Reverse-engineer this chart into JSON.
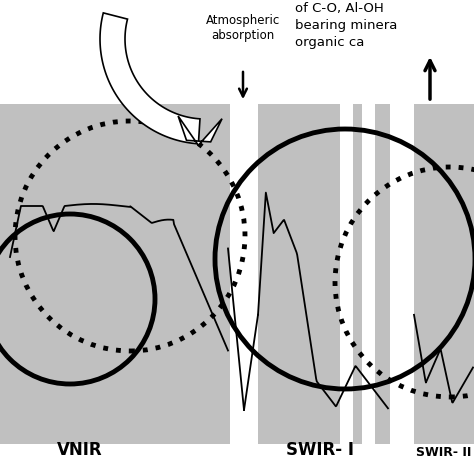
{
  "bg_color": "#c0c0c0",
  "white_color": "#ffffff",
  "black_color": "#000000",
  "fig_bg": "#ffffff",
  "vnir_label": "VNIR",
  "swir1_label": "SWIR- I",
  "swir2_label": "SWIR- II",
  "atm_text": "Atmospheric\nabsorption",
  "top_text1": "of C-O, Al-OH",
  "top_text2": "bearing minera",
  "top_text3": "organic ca"
}
